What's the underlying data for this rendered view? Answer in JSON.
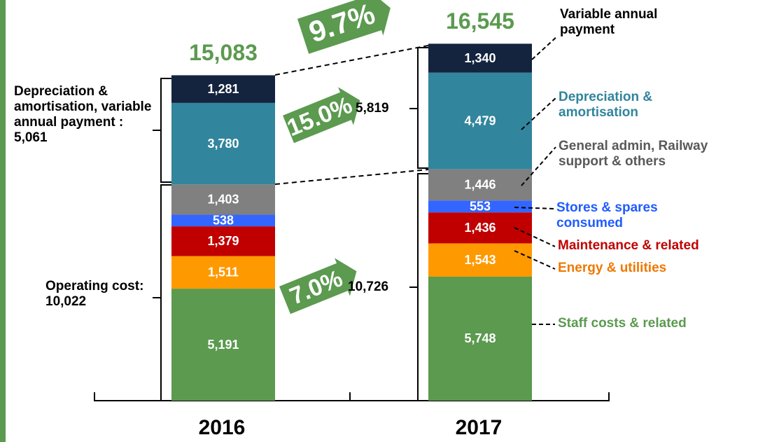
{
  "chart_data": {
    "type": "bar",
    "stacked": true,
    "categories": [
      "2016",
      "2017"
    ],
    "totals": {
      "values": [
        15083,
        16545
      ],
      "value_labels": [
        "15,083",
        "16,545"
      ],
      "color": "#5b9a4f"
    },
    "series": [
      {
        "name": "Staff costs & related",
        "color": "#5b9a4f",
        "label_color": "#5b9a4f",
        "values": [
          5191,
          5748
        ],
        "value_labels": [
          "5,191",
          "5,748"
        ]
      },
      {
        "name": "Energy & utilities",
        "color": "#ff9900",
        "label_color": "#f07800",
        "values": [
          1511,
          1543
        ],
        "value_labels": [
          "1,511",
          "1,543"
        ]
      },
      {
        "name": "Maintenance & related",
        "color": "#c00000",
        "label_color": "#c00000",
        "values": [
          1379,
          1436
        ],
        "value_labels": [
          "1,379",
          "1,436"
        ]
      },
      {
        "name": "Stores & spares consumed",
        "color": "#3366ff",
        "label_color": "#1f5cff",
        "values": [
          538,
          553
        ],
        "value_labels": [
          "538",
          "553"
        ]
      },
      {
        "name": "General admin, Railway support & others",
        "color": "#808080",
        "label_color": "#595959",
        "values": [
          1403,
          1446
        ],
        "value_labels": [
          "1,403",
          "1,446"
        ]
      },
      {
        "name": "Depreciation & amortisation",
        "color": "#31859c",
        "label_color": "#31859c",
        "values": [
          3780,
          4479
        ],
        "value_labels": [
          "3,780",
          "4,479"
        ]
      },
      {
        "name": "Variable annual payment",
        "color": "#14243f",
        "label_color": "#000000",
        "values": [
          1281,
          1340
        ],
        "value_labels": [
          "1,281",
          "1,340"
        ]
      }
    ],
    "annotations": [
      "9.7%",
      "15.0%",
      "7.0%"
    ],
    "brackets": [
      "Depreciation & amortisation, variable annual payment : 5,061",
      "Operating cost: 10,022",
      "5,819",
      "10,726"
    ]
  }
}
